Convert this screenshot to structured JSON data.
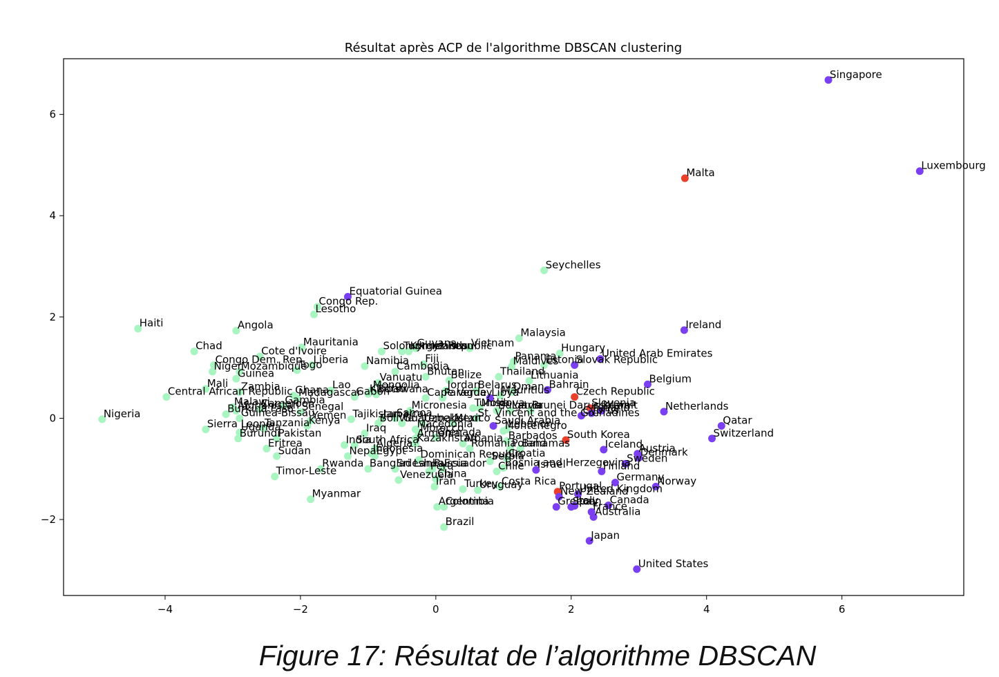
{
  "caption": "Figure 17: Résultat de l’algorithme DBSCAN",
  "colors": {
    "cluster_0": "#a8f5c2",
    "cluster_1": "#7b3ff2",
    "noise": "#e8402a"
  },
  "chart_data": {
    "type": "scatter",
    "title": "Résultat après ACP de l'algorithme DBSCAN clustering",
    "xlabel": "",
    "ylabel": "",
    "xlim": [
      -5.5,
      7.8
    ],
    "ylim": [
      -3.5,
      7.1
    ],
    "grid": false,
    "xticks": [
      -4,
      -2,
      0,
      2,
      4,
      6
    ],
    "xtick_labels": [
      "−4",
      "−2",
      "0",
      "2",
      "4",
      "6"
    ],
    "yticks": [
      -2,
      0,
      2,
      4,
      6
    ],
    "ytick_labels": [
      "−2",
      "0",
      "2",
      "4",
      "6"
    ],
    "points": [
      {
        "label": "Singapore",
        "x": 5.8,
        "y": 6.68,
        "cluster": "cluster_1"
      },
      {
        "label": "Luxembourg",
        "x": 7.15,
        "y": 4.88,
        "cluster": "cluster_1"
      },
      {
        "label": "Malta",
        "x": 3.68,
        "y": 4.74,
        "cluster": "noise"
      },
      {
        "label": "Seychelles",
        "x": 1.6,
        "y": 2.92,
        "cluster": "cluster_0"
      },
      {
        "label": "Equatorial Guinea",
        "x": -1.3,
        "y": 2.4,
        "cluster": "cluster_1"
      },
      {
        "label": "Congo Rep.",
        "x": -1.75,
        "y": 2.2,
        "cluster": "cluster_0"
      },
      {
        "label": "Lesotho",
        "x": -1.8,
        "y": 2.05,
        "cluster": "cluster_0"
      },
      {
        "label": "Haiti",
        "x": -4.4,
        "y": 1.77,
        "cluster": "cluster_0"
      },
      {
        "label": "Angola",
        "x": -2.95,
        "y": 1.73,
        "cluster": "cluster_0"
      },
      {
        "label": "Ireland",
        "x": 3.67,
        "y": 1.74,
        "cluster": "cluster_1"
      },
      {
        "label": "Malaysia",
        "x": 1.23,
        "y": 1.58,
        "cluster": "cluster_0"
      },
      {
        "label": "Mauritania",
        "x": -1.98,
        "y": 1.4,
        "cluster": "cluster_0"
      },
      {
        "label": "Chad",
        "x": -3.57,
        "y": 1.32,
        "cluster": "cluster_0"
      },
      {
        "label": "Cote d'Ivoire",
        "x": -2.6,
        "y": 1.22,
        "cluster": "cluster_0"
      },
      {
        "label": "Guyana",
        "x": -0.3,
        "y": 1.38,
        "cluster": "cluster_0"
      },
      {
        "label": "Solomon Islands",
        "x": -0.8,
        "y": 1.32,
        "cluster": "cluster_0"
      },
      {
        "label": "Turkmenistan",
        "x": -0.5,
        "y": 1.32,
        "cluster": "cluster_0"
      },
      {
        "label": "Kyrgyz Republic",
        "x": -0.4,
        "y": 1.32,
        "cluster": "cluster_0"
      },
      {
        "label": "Vietnam",
        "x": 0.5,
        "y": 1.38,
        "cluster": "cluster_0"
      },
      {
        "label": "Hungary",
        "x": 1.83,
        "y": 1.28,
        "cluster": "cluster_0"
      },
      {
        "label": "United Arab Emirates",
        "x": 2.43,
        "y": 1.17,
        "cluster": "cluster_1"
      },
      {
        "label": "Slovak Republic",
        "x": 2.05,
        "y": 1.05,
        "cluster": "cluster_1"
      },
      {
        "label": "Estonia",
        "x": 1.6,
        "y": 1.05,
        "cluster": "cluster_0"
      },
      {
        "label": "Panama",
        "x": 1.15,
        "y": 1.12,
        "cluster": "cluster_0"
      },
      {
        "label": "Maldives",
        "x": 1.12,
        "y": 1.02,
        "cluster": "cluster_0"
      },
      {
        "label": "Congo Dem. Rep.",
        "x": -3.28,
        "y": 1.05,
        "cluster": "cluster_0"
      },
      {
        "label": "Liberia",
        "x": -1.83,
        "y": 1.05,
        "cluster": "cluster_0"
      },
      {
        "label": "Niger",
        "x": -3.3,
        "y": 0.92,
        "cluster": "cluster_0"
      },
      {
        "label": "Mozambique",
        "x": -2.9,
        "y": 0.92,
        "cluster": "cluster_0"
      },
      {
        "label": "Togo",
        "x": -2.05,
        "y": 0.95,
        "cluster": "cluster_0"
      },
      {
        "label": "Namibia",
        "x": -1.05,
        "y": 1.03,
        "cluster": "cluster_0"
      },
      {
        "label": "Fiji",
        "x": -0.18,
        "y": 1.07,
        "cluster": "cluster_0"
      },
      {
        "label": "Cambodia",
        "x": -0.6,
        "y": 0.92,
        "cluster": "cluster_0"
      },
      {
        "label": "Thailand",
        "x": 0.93,
        "y": 0.82,
        "cluster": "cluster_0"
      },
      {
        "label": "Belgium",
        "x": 3.13,
        "y": 0.67,
        "cluster": "cluster_1"
      },
      {
        "label": "Guinea",
        "x": -2.95,
        "y": 0.78,
        "cluster": "cluster_0"
      },
      {
        "label": "Bhutan",
        "x": -0.15,
        "y": 0.82,
        "cluster": "cluster_0"
      },
      {
        "label": "Lithuania",
        "x": 1.38,
        "y": 0.74,
        "cluster": "cluster_0"
      },
      {
        "label": "Belize",
        "x": 0.2,
        "y": 0.75,
        "cluster": "cluster_0"
      },
      {
        "label": "Vanuatu",
        "x": -0.85,
        "y": 0.7,
        "cluster": "cluster_0"
      },
      {
        "label": "Bahrain",
        "x": 1.65,
        "y": 0.56,
        "cluster": "cluster_1"
      },
      {
        "label": "Mali",
        "x": -3.4,
        "y": 0.58,
        "cluster": "cluster_0"
      },
      {
        "label": "Lao",
        "x": -1.55,
        "y": 0.55,
        "cluster": "cluster_0"
      },
      {
        "label": "Mongolia",
        "x": -0.95,
        "y": 0.55,
        "cluster": "cluster_0"
      },
      {
        "label": "Jordan",
        "x": 0.15,
        "y": 0.55,
        "cluster": "cluster_0"
      },
      {
        "label": "Belarus",
        "x": 0.6,
        "y": 0.55,
        "cluster": "cluster_0"
      },
      {
        "label": "Oman",
        "x": 1.12,
        "y": 0.52,
        "cluster": "cluster_0"
      },
      {
        "label": "Zambia",
        "x": -2.9,
        "y": 0.52,
        "cluster": "cluster_0"
      },
      {
        "label": "Botswana",
        "x": -0.88,
        "y": 0.47,
        "cluster": "cluster_0"
      },
      {
        "label": "Mauritius",
        "x": 0.95,
        "y": 0.45,
        "cluster": "cluster_0"
      },
      {
        "label": "Czech Republic",
        "x": 2.05,
        "y": 0.42,
        "cluster": "noise"
      },
      {
        "label": "Central African Republic",
        "x": -3.98,
        "y": 0.42,
        "cluster": "cluster_0"
      },
      {
        "label": "Ghana",
        "x": -2.1,
        "y": 0.45,
        "cluster": "cluster_0"
      },
      {
        "label": "Madagascar",
        "x": -2.05,
        "y": 0.4,
        "cluster": "cluster_0"
      },
      {
        "label": "Gabon",
        "x": -1.2,
        "y": 0.42,
        "cluster": "cluster_0"
      },
      {
        "label": "Kiribati",
        "x": -1.0,
        "y": 0.48,
        "cluster": "cluster_0"
      },
      {
        "label": "Cape Verde",
        "x": -0.15,
        "y": 0.4,
        "cluster": "cluster_0"
      },
      {
        "label": "Paraguay",
        "x": 0.1,
        "y": 0.4,
        "cluster": "cluster_0"
      },
      {
        "label": "Libya",
        "x": 0.8,
        "y": 0.4,
        "cluster": "cluster_1"
      },
      {
        "label": "Malawi",
        "x": -3.0,
        "y": 0.22,
        "cluster": "cluster_0"
      },
      {
        "label": "Afghanistan",
        "x": -2.95,
        "y": 0.15,
        "cluster": "cluster_0"
      },
      {
        "label": "Cameroon",
        "x": -2.6,
        "y": 0.18,
        "cluster": "cluster_0"
      },
      {
        "label": "Gambia",
        "x": -2.25,
        "y": 0.25,
        "cluster": "cluster_0"
      },
      {
        "label": "Burkina Faso",
        "x": -3.1,
        "y": 0.08,
        "cluster": "cluster_0"
      },
      {
        "label": "Senegal",
        "x": -2.0,
        "y": 0.12,
        "cluster": "cluster_0"
      },
      {
        "label": "Slovenia",
        "x": 2.28,
        "y": 0.2,
        "cluster": "noise"
      },
      {
        "label": "Tunisia",
        "x": 0.55,
        "y": 0.2,
        "cluster": "cluster_0"
      },
      {
        "label": "Moldova",
        "x": 0.65,
        "y": 0.2,
        "cluster": "cluster_0"
      },
      {
        "label": "Bulgaria",
        "x": 0.9,
        "y": 0.15,
        "cluster": "cluster_0"
      },
      {
        "label": "Latvia",
        "x": 1.1,
        "y": 0.15,
        "cluster": "cluster_0"
      },
      {
        "label": "Brunei Darussalam",
        "x": 1.4,
        "y": 0.15,
        "cluster": "cluster_0"
      },
      {
        "label": "Micronesia",
        "x": -0.38,
        "y": 0.15,
        "cluster": "cluster_0"
      },
      {
        "label": "Kuwait",
        "x": 2.45,
        "y": 0.15,
        "cluster": "cluster_1"
      },
      {
        "label": "Cyprus",
        "x": 2.15,
        "y": 0.05,
        "cluster": "cluster_1"
      },
      {
        "label": "Finland",
        "x": 2.3,
        "y": 0.1,
        "cluster": "cluster_1"
      },
      {
        "label": "Netherlands",
        "x": 3.37,
        "y": 0.13,
        "cluster": "cluster_1"
      },
      {
        "label": "Nigeria",
        "x": -4.93,
        "y": -0.02,
        "cluster": "cluster_0"
      },
      {
        "label": "Guinea-Bissau",
        "x": -2.9,
        "y": 0.0,
        "cluster": "cluster_0"
      },
      {
        "label": "Tajikistan",
        "x": -1.25,
        "y": -0.02,
        "cluster": "cluster_0"
      },
      {
        "label": "Samoa",
        "x": -0.6,
        "y": 0.0,
        "cluster": "cluster_0"
      },
      {
        "label": "St. Vincent and the Grenadines",
        "x": 0.6,
        "y": 0.0,
        "cluster": "cluster_0"
      },
      {
        "label": "Jamaica",
        "x": -0.8,
        "y": -0.02,
        "cluster": "cluster_0"
      },
      {
        "label": "Yemen",
        "x": -1.85,
        "y": -0.05,
        "cluster": "cluster_0"
      },
      {
        "label": "Qatar",
        "x": 4.22,
        "y": -0.15,
        "cluster": "cluster_1"
      },
      {
        "label": "Sierra Leone",
        "x": -3.4,
        "y": -0.22,
        "cluster": "cluster_0"
      },
      {
        "label": "Tanzania",
        "x": -2.55,
        "y": -0.2,
        "cluster": "cluster_0"
      },
      {
        "label": "Kenya",
        "x": -1.9,
        "y": -0.15,
        "cluster": "cluster_0"
      },
      {
        "label": "Bolivia",
        "x": -0.85,
        "y": -0.1,
        "cluster": "cluster_0"
      },
      {
        "label": "Guatemala",
        "x": -0.5,
        "y": -0.1,
        "cluster": "cluster_0"
      },
      {
        "label": "Uzbekistan",
        "x": -0.2,
        "y": -0.1,
        "cluster": "cluster_0"
      },
      {
        "label": "Mexico",
        "x": 0.25,
        "y": -0.1,
        "cluster": "cluster_0"
      },
      {
        "label": "Saudi Arabia",
        "x": 0.85,
        "y": -0.15,
        "cluster": "cluster_1"
      },
      {
        "label": "Iraq",
        "x": -1.05,
        "y": -0.3,
        "cluster": "cluster_0"
      },
      {
        "label": "Macedonia",
        "x": -0.3,
        "y": -0.22,
        "cluster": "cluster_0"
      },
      {
        "label": "Morocco",
        "x": -0.25,
        "y": -0.3,
        "cluster": "cluster_0"
      },
      {
        "label": "Lebanon",
        "x": 1.05,
        "y": -0.22,
        "cluster": "cluster_0"
      },
      {
        "label": "Montenegro",
        "x": 1.0,
        "y": -0.25,
        "cluster": "cluster_0"
      },
      {
        "label": "Uganda",
        "x": -2.9,
        "y": -0.28,
        "cluster": "cluster_0"
      },
      {
        "label": "Burundi",
        "x": -2.92,
        "y": -0.4,
        "cluster": "cluster_0"
      },
      {
        "label": "Switzerland",
        "x": 4.08,
        "y": -0.4,
        "cluster": "cluster_1"
      },
      {
        "label": "Pakistan",
        "x": -2.35,
        "y": -0.4,
        "cluster": "cluster_0"
      },
      {
        "label": "Armenia",
        "x": -0.3,
        "y": -0.4,
        "cluster": "cluster_0"
      },
      {
        "label": "Grenada",
        "x": 0.0,
        "y": -0.38,
        "cluster": "cluster_0"
      },
      {
        "label": "Barbados",
        "x": 1.05,
        "y": -0.45,
        "cluster": "cluster_0"
      },
      {
        "label": "South Korea",
        "x": 1.92,
        "y": -0.43,
        "cluster": "noise"
      },
      {
        "label": "India",
        "x": -1.35,
        "y": -0.53,
        "cluster": "cluster_0"
      },
      {
        "label": "South Africa",
        "x": -1.2,
        "y": -0.53,
        "cluster": "cluster_0"
      },
      {
        "label": "Kazakhstan",
        "x": -0.3,
        "y": -0.5,
        "cluster": "cluster_0"
      },
      {
        "label": "Albania",
        "x": 0.4,
        "y": -0.5,
        "cluster": "cluster_0"
      },
      {
        "label": "Eritrea",
        "x": -2.5,
        "y": -0.6,
        "cluster": "cluster_0"
      },
      {
        "label": "Algeria",
        "x": -0.9,
        "y": -0.6,
        "cluster": "cluster_0"
      },
      {
        "label": "Romania",
        "x": 0.5,
        "y": -0.6,
        "cluster": "cluster_0"
      },
      {
        "label": "Poland",
        "x": 1.1,
        "y": -0.6,
        "cluster": "cluster_0"
      },
      {
        "label": "Bahamas",
        "x": 1.25,
        "y": -0.6,
        "cluster": "cluster_0"
      },
      {
        "label": "Iceland",
        "x": 2.48,
        "y": -0.62,
        "cluster": "cluster_1"
      },
      {
        "label": "Indonesia",
        "x": -0.95,
        "y": -0.7,
        "cluster": "cluster_0"
      },
      {
        "label": "Austria",
        "x": 2.98,
        "y": -0.7,
        "cluster": "cluster_1"
      },
      {
        "label": "Sudan",
        "x": -2.35,
        "y": -0.75,
        "cluster": "cluster_0"
      },
      {
        "label": "Nepal",
        "x": -1.3,
        "y": -0.75,
        "cluster": "cluster_0"
      },
      {
        "label": "Egypt",
        "x": -0.9,
        "y": -0.75,
        "cluster": "cluster_0"
      },
      {
        "label": "Denmark",
        "x": 3.0,
        "y": -0.78,
        "cluster": "cluster_1"
      },
      {
        "label": "Dominican Republic",
        "x": -0.25,
        "y": -0.82,
        "cluster": "cluster_0"
      },
      {
        "label": "Serbia",
        "x": 0.8,
        "y": -0.85,
        "cluster": "cluster_0"
      },
      {
        "label": "Croatia",
        "x": 1.05,
        "y": -0.8,
        "cluster": "cluster_0"
      },
      {
        "label": "Sweden",
        "x": 2.8,
        "y": -0.9,
        "cluster": "cluster_1"
      },
      {
        "label": "Rwanda",
        "x": -1.7,
        "y": -1.0,
        "cluster": "cluster_0"
      },
      {
        "label": "Bangladesh",
        "x": -1.0,
        "y": -1.0,
        "cluster": "cluster_0"
      },
      {
        "label": "Sri Lanka",
        "x": -0.6,
        "y": -1.0,
        "cluster": "cluster_0"
      },
      {
        "label": "Ecuador",
        "x": 0.1,
        "y": -1.0,
        "cluster": "cluster_0"
      },
      {
        "label": "Peru",
        "x": -0.1,
        "y": -1.05,
        "cluster": "cluster_0"
      },
      {
        "label": "Russia",
        "x": -0.05,
        "y": -1.0,
        "cluster": "cluster_0"
      },
      {
        "label": "Bosnia and Herzegovina",
        "x": 1.0,
        "y": -0.98,
        "cluster": "cluster_0"
      },
      {
        "label": "Chile",
        "x": 0.9,
        "y": -1.05,
        "cluster": "cluster_0"
      },
      {
        "label": "Israel",
        "x": 1.48,
        "y": -1.02,
        "cluster": "cluster_1"
      },
      {
        "label": "Finland",
        "x": 2.45,
        "y": -1.05,
        "cluster": "cluster_1"
      },
      {
        "label": "Timor-Leste",
        "x": -2.38,
        "y": -1.15,
        "cluster": "cluster_0"
      },
      {
        "label": "Venezuela",
        "x": -0.55,
        "y": -1.22,
        "cluster": "cluster_0"
      },
      {
        "label": "China",
        "x": 0.0,
        "y": -1.2,
        "cluster": "cluster_0"
      },
      {
        "label": "Germany",
        "x": 2.65,
        "y": -1.27,
        "cluster": "cluster_1"
      },
      {
        "label": "Norway",
        "x": 3.25,
        "y": -1.35,
        "cluster": "cluster_1"
      },
      {
        "label": "Iran",
        "x": -0.02,
        "y": -1.35,
        "cluster": "cluster_0"
      },
      {
        "label": "Costa Rica",
        "x": 0.95,
        "y": -1.35,
        "cluster": "cluster_0"
      },
      {
        "label": "Turkey",
        "x": 0.4,
        "y": -1.4,
        "cluster": "cluster_0"
      },
      {
        "label": "Uruguay",
        "x": 0.62,
        "y": -1.42,
        "cluster": "cluster_0"
      },
      {
        "label": "Portugal",
        "x": 1.8,
        "y": -1.45,
        "cluster": "noise"
      },
      {
        "label": "United Kingdom",
        "x": 2.1,
        "y": -1.5,
        "cluster": "cluster_1"
      },
      {
        "label": "New Zealand",
        "x": 1.82,
        "y": -1.55,
        "cluster": "cluster_1"
      },
      {
        "label": "Myanmar",
        "x": -1.85,
        "y": -1.6,
        "cluster": "cluster_0"
      },
      {
        "label": "Canada",
        "x": 2.55,
        "y": -1.72,
        "cluster": "cluster_1"
      },
      {
        "label": "Greece",
        "x": 1.78,
        "y": -1.75,
        "cluster": "cluster_1"
      },
      {
        "label": "Spain",
        "x": 2.0,
        "y": -1.75,
        "cluster": "cluster_1"
      },
      {
        "label": "Italy",
        "x": 2.05,
        "y": -1.73,
        "cluster": "cluster_1"
      },
      {
        "label": "France",
        "x": 2.3,
        "y": -1.85,
        "cluster": "cluster_1"
      },
      {
        "label": "Australia",
        "x": 2.33,
        "y": -1.95,
        "cluster": "cluster_1"
      },
      {
        "label": "Argentina",
        "x": 0.02,
        "y": -1.75,
        "cluster": "cluster_0"
      },
      {
        "label": "Colombia",
        "x": 0.12,
        "y": -1.75,
        "cluster": "cluster_0"
      },
      {
        "label": "Brazil",
        "x": 0.12,
        "y": -2.15,
        "cluster": "cluster_0"
      },
      {
        "label": "Japan",
        "x": 2.27,
        "y": -2.42,
        "cluster": "cluster_1"
      },
      {
        "label": "United States",
        "x": 2.97,
        "y": -2.98,
        "cluster": "cluster_1"
      }
    ]
  }
}
